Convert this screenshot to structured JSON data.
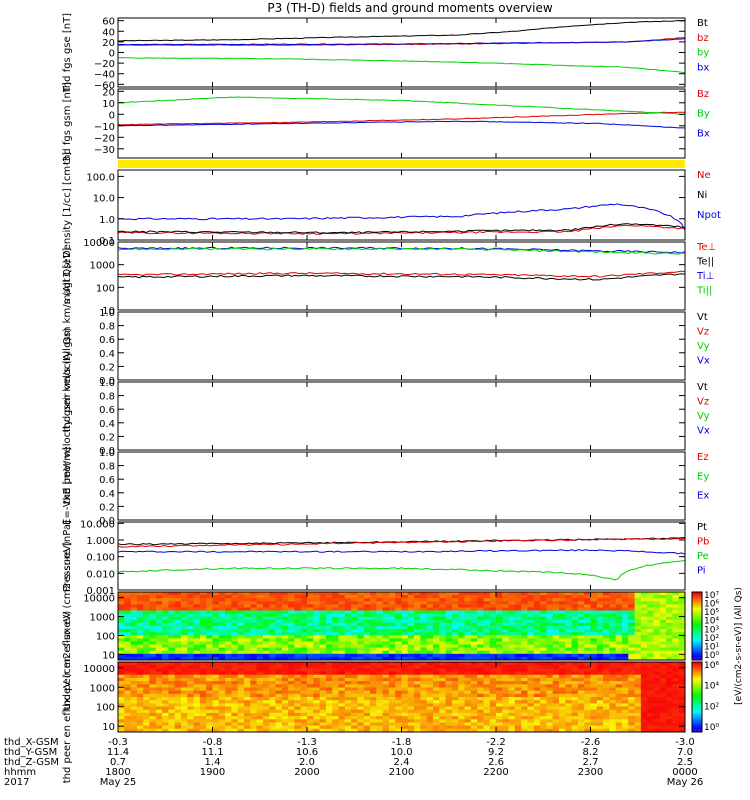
{
  "title": "P3 (TH-D) fields and ground moments overview",
  "colors": {
    "black": "#000000",
    "red": "#e00000",
    "green": "#00d000",
    "blue": "#0000e0",
    "yellow": "#ffea00"
  },
  "footer": {
    "rows": [
      "thd_X-GSM",
      "thd_Y-GSM",
      "thd_Z-GSM",
      "hhmm",
      "2017"
    ],
    "ticks": [
      {
        "x": "-0.3",
        "y": "11.4",
        "z": "0.7",
        "t": "1800",
        "d": "May 25"
      },
      {
        "x": "-0.8",
        "y": "11.1",
        "z": "1.4",
        "t": "1900",
        "d": ""
      },
      {
        "x": "-1.3",
        "y": "10.6",
        "z": "2.0",
        "t": "2000",
        "d": ""
      },
      {
        "x": "-1.8",
        "y": "10.0",
        "z": "2.4",
        "t": "2100",
        "d": ""
      },
      {
        "x": "-2.2",
        "y": "9.2",
        "z": "2.6",
        "t": "2200",
        "d": ""
      },
      {
        "x": "-2.6",
        "y": "8.2",
        "z": "2.7",
        "t": "2300",
        "d": ""
      },
      {
        "x": "-3.0",
        "y": "7.0",
        "z": "2.5",
        "t": "0000",
        "d": "May 26"
      }
    ]
  },
  "chart_data": [
    {
      "type": "line",
      "ylabel": "thd fgs gse [nT]",
      "ylim": [
        -65,
        65
      ],
      "yticks": [
        "60",
        "40",
        "20",
        "0",
        "−20",
        "−40",
        "−60"
      ],
      "ytick_values": [
        60,
        40,
        20,
        0,
        -20,
        -40,
        -60
      ],
      "series": [
        {
          "name": "Bt",
          "color": "#000000",
          "x": [
            0,
            0.2,
            0.4,
            0.6,
            0.7,
            0.8,
            0.9,
            1
          ],
          "values": [
            22,
            24,
            29,
            33,
            40,
            50,
            57,
            60
          ]
        },
        {
          "name": "bz",
          "color": "#e00000",
          "x": [
            0,
            0.3,
            0.6,
            0.9,
            1
          ],
          "values": [
            14,
            14,
            16,
            20,
            28
          ]
        },
        {
          "name": "by",
          "color": "#00d000",
          "x": [
            0,
            0.3,
            0.6,
            0.9,
            1
          ],
          "values": [
            -10,
            -12,
            -18,
            -28,
            -38
          ]
        },
        {
          "name": "bx",
          "color": "#0000e0",
          "x": [
            0,
            0.5,
            0.9,
            1
          ],
          "values": [
            15,
            16,
            20,
            26
          ]
        }
      ]
    },
    {
      "type": "line",
      "ylabel": "thd fgs gsm [nT]",
      "ylim": [
        -38,
        22
      ],
      "yticks": [
        "20",
        "10",
        "0",
        "−10",
        "−20",
        "−30"
      ],
      "ytick_values": [
        20,
        10,
        0,
        -10,
        -20,
        -30
      ],
      "series": [
        {
          "name": "Bz",
          "color": "#e00000",
          "x": [
            0,
            0.3,
            0.6,
            0.85,
            1
          ],
          "values": [
            -9,
            -7,
            -4,
            0,
            2
          ]
        },
        {
          "name": "By",
          "color": "#00d000",
          "x": [
            0,
            0.2,
            0.5,
            0.8,
            1
          ],
          "values": [
            10,
            15,
            12,
            5,
            0
          ]
        },
        {
          "name": "Bx",
          "color": "#0000e0",
          "x": [
            0,
            0.3,
            0.6,
            0.85,
            1
          ],
          "values": [
            -10,
            -8,
            -6,
            -8,
            -12
          ]
        }
      ]
    },
    {
      "type": "line",
      "ylabel": "Density [1/cc] [cm-3]",
      "log": true,
      "ylim": [
        0.1,
        200
      ],
      "yticks": [
        "100.0",
        "10.0",
        "1.0",
        "0.1"
      ],
      "ytick_values": [
        100,
        10,
        1,
        0.1
      ],
      "series": [
        {
          "name": "Ne",
          "color": "#e00000",
          "x": [
            0,
            0.4,
            0.8,
            0.9,
            1
          ],
          "values": [
            0.22,
            0.2,
            0.25,
            0.5,
            0.35
          ]
        },
        {
          "name": "Ni",
          "color": "#000000",
          "x": [
            0,
            0.4,
            0.8,
            0.9,
            1
          ],
          "values": [
            0.25,
            0.22,
            0.3,
            0.6,
            0.4
          ]
        },
        {
          "name": "Npot",
          "color": "#0000e0",
          "x": [
            0,
            0.3,
            0.6,
            0.8,
            0.88,
            1
          ],
          "values": [
            1,
            1,
            1.3,
            3,
            5,
            0.3
          ]
        }
      ]
    },
    {
      "type": "line",
      "ylabel": "magt3 [eV]",
      "log": true,
      "ylim": [
        10,
        10000
      ],
      "yticks": [
        "10000",
        "1000",
        "100",
        "10"
      ],
      "ytick_values": [
        10000,
        1000,
        100,
        10
      ],
      "series": [
        {
          "name": "Te⊥",
          "color": "#e00000",
          "x": [
            0,
            0.3,
            0.6,
            0.85,
            1
          ],
          "values": [
            350,
            420,
            380,
            300,
            500
          ]
        },
        {
          "name": "Te||",
          "color": "#000000",
          "x": [
            0,
            0.3,
            0.6,
            0.85,
            1
          ],
          "values": [
            280,
            330,
            300,
            220,
            400
          ]
        },
        {
          "name": "Ti⊥",
          "color": "#0000e0",
          "x": [
            0,
            0.3,
            0.6,
            0.85,
            1
          ],
          "values": [
            5200,
            5500,
            5300,
            4000,
            3500
          ]
        },
        {
          "name": "Ti||",
          "color": "#00d000",
          "x": [
            0,
            0.3,
            0.6,
            0.85,
            1
          ],
          "values": [
            4800,
            5000,
            4900,
            3600,
            3000
          ]
        }
      ]
    },
    {
      "type": "line",
      "ylabel": "thd peir velocity gsm km/s (All Qs)",
      "ylim": [
        0,
        1
      ],
      "yticks": [
        "1.0",
        "0.8",
        "0.6",
        "0.4",
        "0.2",
        "0.0"
      ],
      "ytick_values": [
        1,
        0.8,
        0.6,
        0.4,
        0.2,
        0
      ],
      "series": [
        {
          "name": "Vt",
          "color": "#000000"
        },
        {
          "name": "Vz",
          "color": "#e00000"
        },
        {
          "name": "Vy",
          "color": "#00d000"
        },
        {
          "name": "Vx",
          "color": "#0000e0"
        }
      ]
    },
    {
      "type": "line",
      "ylabel": "thd peer velocity gsm km/s (All Qs)",
      "ylim": [
        0,
        1
      ],
      "yticks": [
        "1.0",
        "0.8",
        "0.6",
        "0.4",
        "0.2",
        "0.0"
      ],
      "ytick_values": [
        1,
        0.8,
        0.6,
        0.4,
        0.2,
        0
      ],
      "series": [
        {
          "name": "Vt",
          "color": "#000000"
        },
        {
          "name": "Vz",
          "color": "#e00000"
        },
        {
          "name": "Vy",
          "color": "#00d000"
        },
        {
          "name": "Vx",
          "color": "#0000e0"
        }
      ]
    },
    {
      "type": "line",
      "ylabel": "E=-VxB [mV/m]",
      "ylim": [
        0,
        1
      ],
      "yticks": [
        "1.0",
        "0.8",
        "0.6",
        "0.4",
        "0.2",
        "0.0"
      ],
      "ytick_values": [
        1,
        0.8,
        0.6,
        0.4,
        0.2,
        0
      ],
      "series": [
        {
          "name": "Ez",
          "color": "#e00000"
        },
        {
          "name": "Ey",
          "color": "#00d000"
        },
        {
          "name": "Ex",
          "color": "#0000e0"
        }
      ]
    },
    {
      "type": "line",
      "ylabel": "Pressure [nPa]",
      "log": true,
      "ylim": [
        0.001,
        12
      ],
      "yticks": [
        "10.000",
        "1.000",
        "0.100",
        "0.010",
        "0.001"
      ],
      "ytick_values": [
        10,
        1,
        0.1,
        0.01,
        0.001
      ],
      "series": [
        {
          "name": "Pt",
          "color": "#000000",
          "x": [
            0,
            0.3,
            0.6,
            0.8,
            1
          ],
          "values": [
            0.55,
            0.65,
            0.85,
            1.05,
            1.3
          ]
        },
        {
          "name": "Pb",
          "color": "#e00000",
          "x": [
            0,
            0.3,
            0.6,
            0.8,
            1
          ],
          "values": [
            0.4,
            0.55,
            0.8,
            1.0,
            1.2
          ]
        },
        {
          "name": "Pe",
          "color": "#00d000",
          "x": [
            0,
            0.2,
            0.5,
            0.8,
            0.88,
            1
          ],
          "values": [
            0.012,
            0.02,
            0.02,
            0.01,
            0.004,
            0.06
          ]
        },
        {
          "name": "Pi",
          "color": "#0000e0",
          "x": [
            0,
            0.5,
            0.85,
            1
          ],
          "values": [
            0.2,
            0.2,
            0.25,
            0.15
          ]
        }
      ]
    },
    {
      "type": "heatmap",
      "ylabel": "thd peir en eflux eV (cm2-s-sr-eV)",
      "ylim": [
        5,
        20000
      ],
      "yticks": [
        "10000",
        "1000",
        "100",
        "10"
      ],
      "ytick_values": [
        10000,
        1000,
        100,
        10
      ],
      "colorbar_label": "[eV/(cm2-s-sr-eV)] (All Qs)",
      "colorbar_ticks": [
        "10⁷",
        "10⁶",
        "10⁵",
        "10⁴",
        "10³",
        "10²",
        "10¹",
        "10⁰"
      ]
    },
    {
      "type": "heatmap",
      "ylabel": "thd peer en eflux eV (cm2-s-sr-eV)",
      "ylim": [
        5,
        20000
      ],
      "yticks": [
        "10000",
        "1000",
        "100",
        "10"
      ],
      "ytick_values": [
        10000,
        1000,
        100,
        10
      ],
      "colorbar_ticks": [
        "10⁶",
        "10⁴",
        "10²",
        "10⁰"
      ]
    }
  ]
}
